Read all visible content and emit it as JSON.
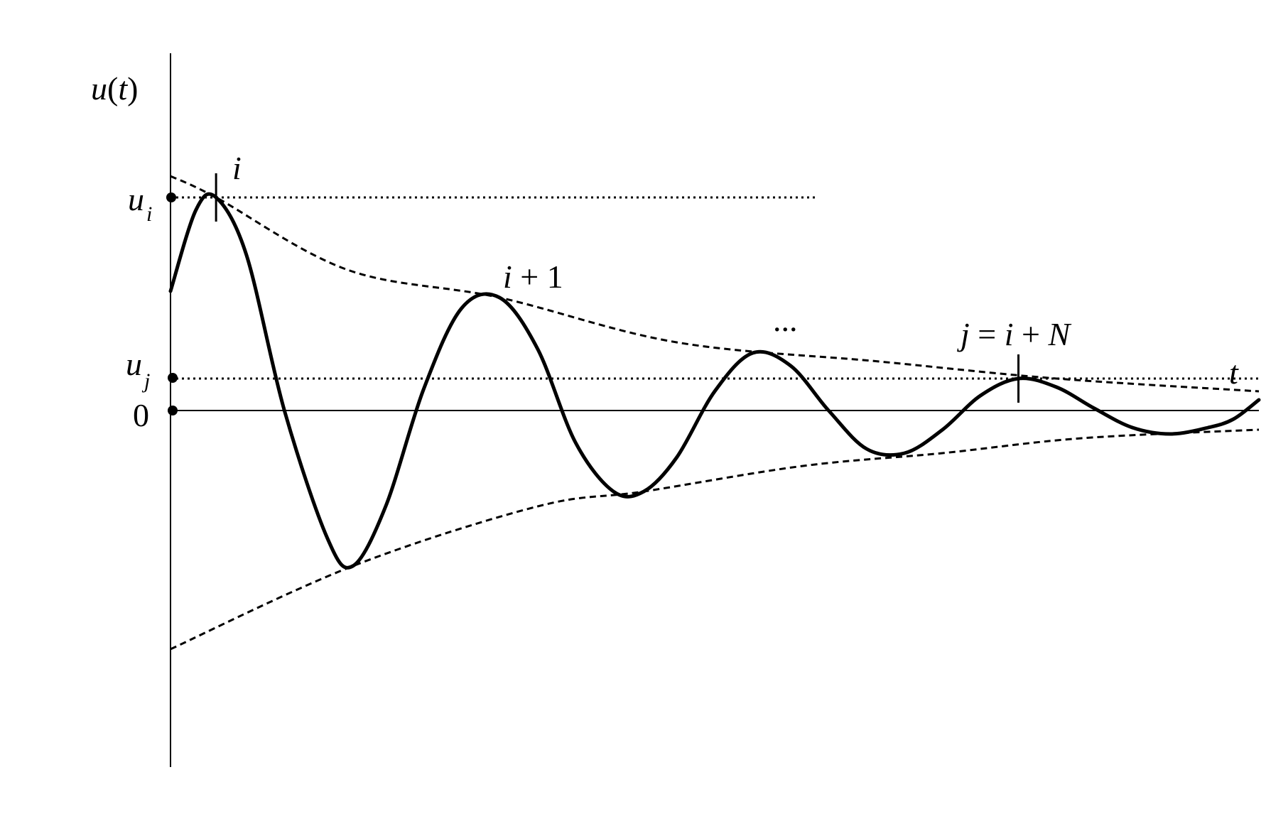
{
  "chart_data": {
    "type": "line",
    "title": "",
    "axes": {
      "y_label": {
        "base": "u",
        "open": "(",
        "arg": "t",
        "close": ")"
      },
      "x_label": "t",
      "grid": false
    },
    "y_ticks": [
      {
        "id": "ui",
        "base": "u",
        "sub": "i"
      },
      {
        "id": "uj",
        "base": "u",
        "sub": "j"
      },
      {
        "id": "zero",
        "text": "0"
      }
    ],
    "peak_labels": {
      "i": "i",
      "i_plus_1": {
        "var": "i",
        "rest": " + 1"
      },
      "ellipsis": "...",
      "j": {
        "j": "j",
        "eq": " = ",
        "i": "i",
        "plus": " + ",
        "N": "N"
      }
    },
    "series": [
      {
        "role": "damped-oscillation",
        "style": "solid",
        "points": [
          [
            0.0,
            0.56
          ],
          [
            0.1,
            0.94
          ],
          [
            0.18,
            1.0
          ],
          [
            0.3,
            0.73
          ],
          [
            0.45,
            0.0
          ],
          [
            0.62,
            -0.6
          ],
          [
            0.72,
            -0.73
          ],
          [
            0.85,
            -0.45
          ],
          [
            1.0,
            0.1
          ],
          [
            1.15,
            0.48
          ],
          [
            1.3,
            0.53
          ],
          [
            1.45,
            0.29
          ],
          [
            1.6,
            -0.15
          ],
          [
            1.75,
            -0.38
          ],
          [
            1.87,
            -0.38
          ],
          [
            2.0,
            -0.22
          ],
          [
            2.15,
            0.09
          ],
          [
            2.3,
            0.27
          ],
          [
            2.45,
            0.21
          ],
          [
            2.6,
            0.0
          ],
          [
            2.75,
            -0.18
          ],
          [
            2.9,
            -0.2
          ],
          [
            3.05,
            -0.09
          ],
          [
            3.2,
            0.07
          ],
          [
            3.35,
            0.15
          ],
          [
            3.5,
            0.11
          ],
          [
            3.65,
            0.01
          ],
          [
            3.8,
            -0.08
          ],
          [
            3.95,
            -0.11
          ],
          [
            4.1,
            -0.08
          ],
          [
            4.2,
            -0.04
          ],
          [
            4.3,
            0.05
          ]
        ]
      },
      {
        "role": "upper-envelope",
        "style": "dashed",
        "points": [
          [
            0.0,
            1.1
          ],
          [
            0.18,
            1.0
          ],
          [
            0.7,
            0.66
          ],
          [
            1.3,
            0.53
          ],
          [
            2.0,
            0.32
          ],
          [
            2.8,
            0.23
          ],
          [
            3.5,
            0.15
          ],
          [
            4.3,
            0.09
          ]
        ]
      },
      {
        "role": "lower-envelope",
        "style": "dashed",
        "points": [
          [
            0.0,
            -1.12
          ],
          [
            0.72,
            -0.73
          ],
          [
            1.45,
            -0.45
          ],
          [
            1.87,
            -0.38
          ],
          [
            2.5,
            -0.26
          ],
          [
            3.05,
            -0.2
          ],
          [
            3.6,
            -0.13
          ],
          [
            4.3,
            -0.09
          ]
        ]
      }
    ],
    "reference_lines": [
      {
        "role": "ui-level",
        "y": 1.0,
        "x_end": 2.55,
        "style": "dotted"
      },
      {
        "role": "uj-level",
        "y": 0.15,
        "x_end": 4.3,
        "style": "dotted"
      },
      {
        "role": "zero-axis",
        "y": 0.0,
        "x_end": 4.3,
        "style": "solid"
      }
    ],
    "peak_markers": [
      {
        "label": "i",
        "x": 0.18,
        "y": 1.0
      },
      {
        "label": "j",
        "x": 3.35,
        "y": 0.15
      }
    ],
    "xlim": [
      0,
      4.3
    ],
    "ylim": [
      -1.6,
      1.7
    ]
  }
}
